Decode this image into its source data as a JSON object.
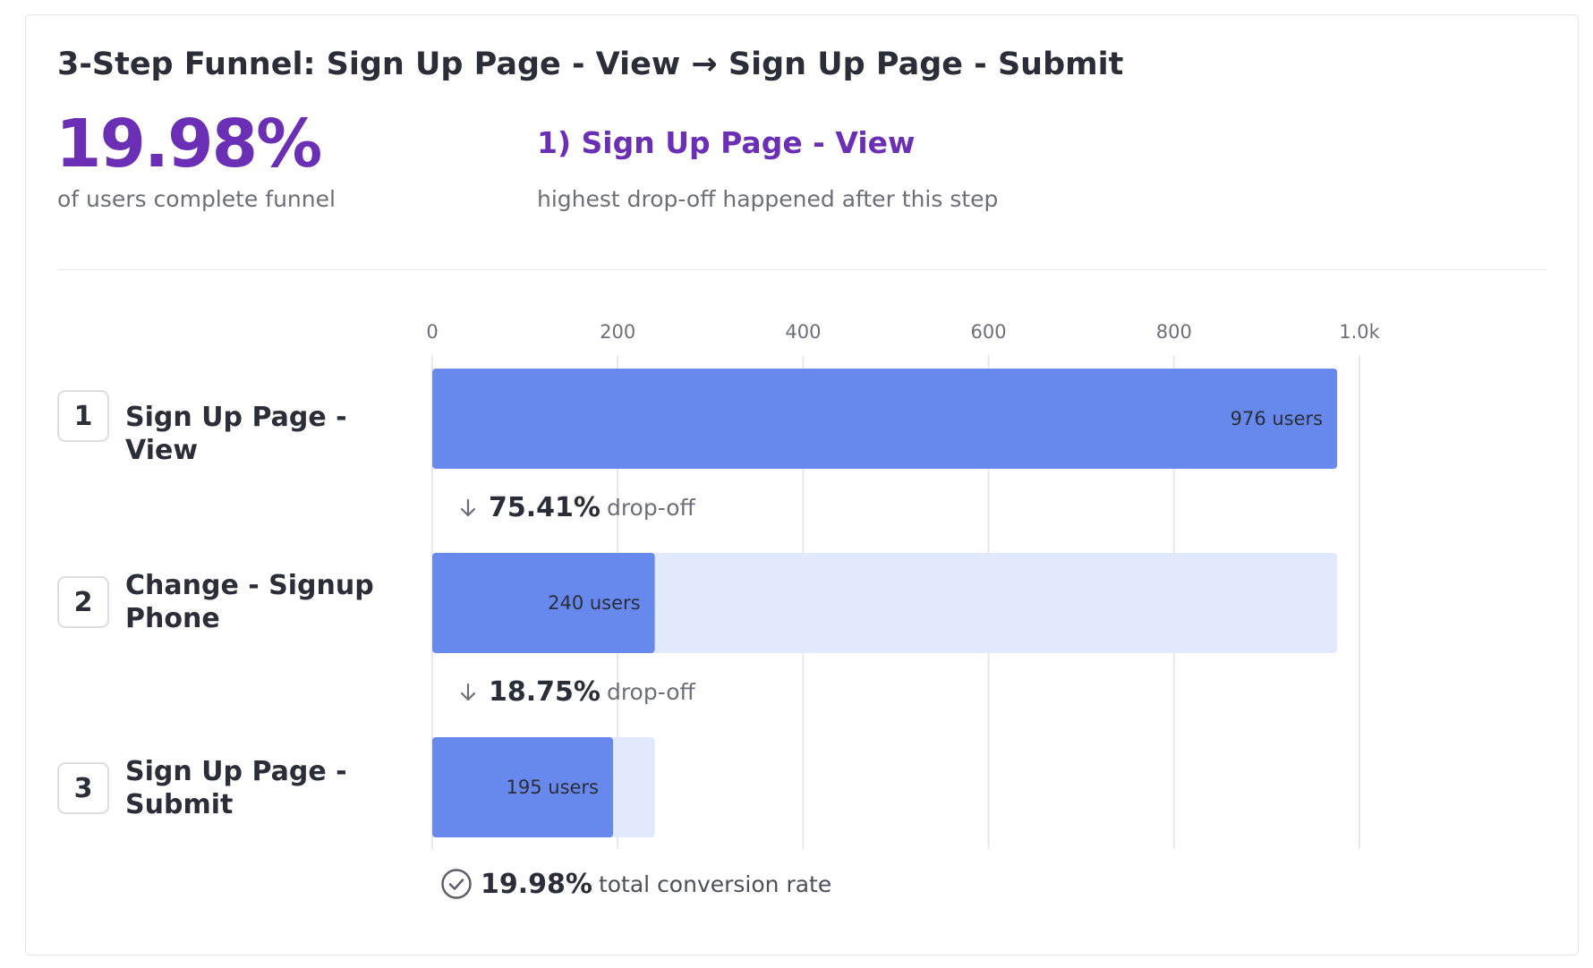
{
  "header": {
    "title": "3-Step Funnel: Sign Up Page - View → Sign Up Page - Submit"
  },
  "summary": {
    "completion_value": "19.98%",
    "completion_caption": "of users complete funnel",
    "highest_dropoff_step": "1) Sign Up Page - View",
    "highest_dropoff_caption": "highest drop-off happened after this step"
  },
  "steps": [
    {
      "number": "1",
      "name": "Sign Up Page - View"
    },
    {
      "number": "2",
      "name": "Change - Signup Phone"
    },
    {
      "number": "3",
      "name": "Sign Up Page - Submit"
    }
  ],
  "dropoffs": [
    {
      "pct": "75.41%",
      "label": "drop-off"
    },
    {
      "pct": "18.75%",
      "label": "drop-off"
    }
  ],
  "conversion": {
    "pct": "19.98%",
    "label": "total conversion rate"
  },
  "colors": {
    "bar": "#6789ee",
    "bar_background": "#e3e9fc",
    "accent": "#6a2fb4",
    "grid": "#e8e8ec"
  },
  "chart_data": {
    "type": "bar",
    "orientation": "horizontal",
    "categories": [
      "Sign Up Page - View",
      "Change - Signup Phone",
      "Sign Up Page - Submit"
    ],
    "values": [
      976,
      240,
      195
    ],
    "value_labels": [
      "976 users",
      "240 users",
      "195 users"
    ],
    "xlim": [
      0,
      1000
    ],
    "xticks": [
      0,
      200,
      400,
      600,
      800,
      1000
    ],
    "xtick_labels": [
      "0",
      "200",
      "400",
      "600",
      "800",
      "1.0k"
    ],
    "grid": true,
    "legend": "none"
  }
}
